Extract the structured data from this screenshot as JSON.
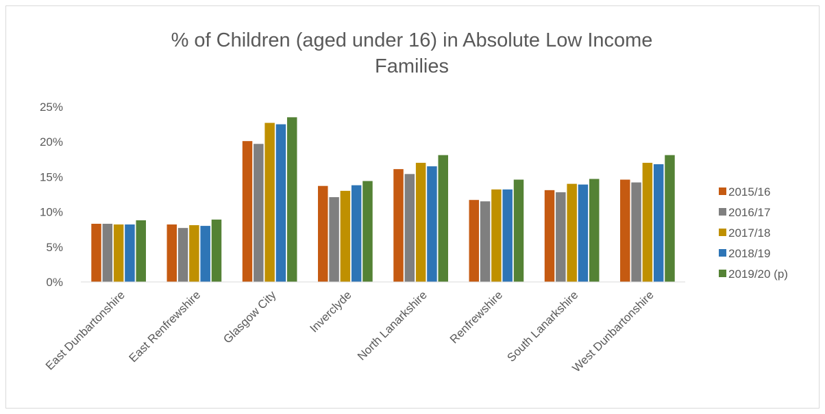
{
  "chart_data": {
    "type": "bar",
    "title_lines": [
      "% of Children (aged under 16) in Absolute Low Income",
      "Families"
    ],
    "categories": [
      "East Dunbartonshire",
      "East Renfrewshire",
      "Glasgow City",
      "Inverclyde",
      "North Lanarkshire",
      "Renfrewshire",
      "South Lanarkshire",
      "West Dunbartonshire"
    ],
    "series": [
      {
        "name": "2015/16",
        "color": "#c55a11",
        "values": [
          8.3,
          8.2,
          20.1,
          13.7,
          16.1,
          11.7,
          13.1,
          14.6
        ]
      },
      {
        "name": "2016/17",
        "color": "#7f7f7f",
        "values": [
          8.3,
          7.7,
          19.7,
          12.1,
          15.4,
          11.5,
          12.8,
          14.2
        ]
      },
      {
        "name": "2017/18",
        "color": "#bf9000",
        "values": [
          8.2,
          8.1,
          22.7,
          13.0,
          17.0,
          13.2,
          14.0,
          17.0
        ]
      },
      {
        "name": "2018/19",
        "color": "#2e75b6",
        "values": [
          8.2,
          8.0,
          22.5,
          13.8,
          16.5,
          13.2,
          13.9,
          16.8
        ]
      },
      {
        "name": "2019/20 (p)",
        "color": "#548235",
        "values": [
          8.8,
          8.9,
          23.5,
          14.4,
          18.1,
          14.6,
          14.7,
          18.1
        ]
      }
    ],
    "y_ticks": [
      "0%",
      "5%",
      "10%",
      "15%",
      "20%",
      "25%"
    ],
    "ylim": [
      0,
      25
    ],
    "grid": false,
    "legend_position": "right"
  }
}
